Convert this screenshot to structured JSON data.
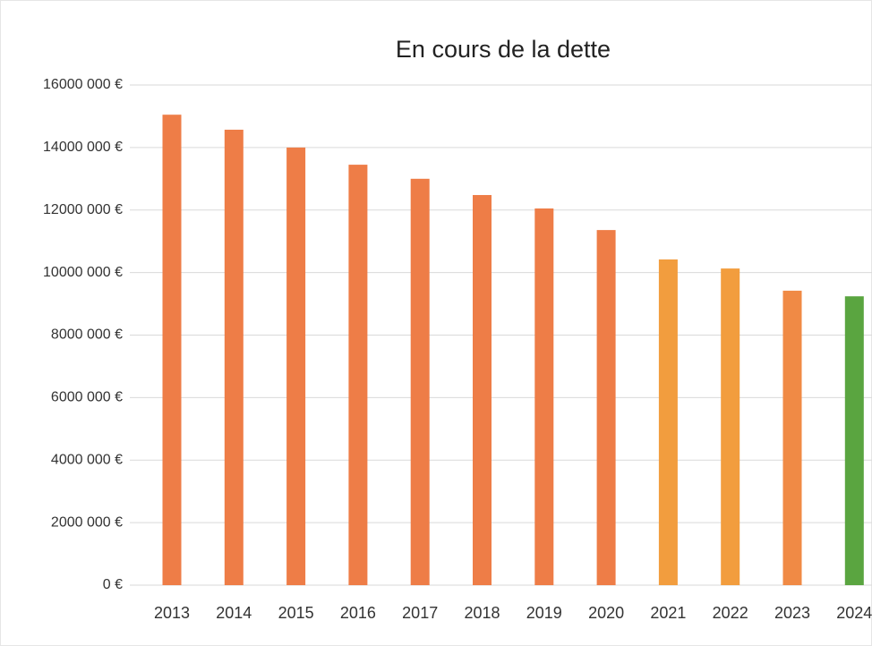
{
  "chart_data": {
    "type": "bar",
    "title": "En cours de la dette",
    "categories": [
      "2013",
      "2014",
      "2015",
      "2016",
      "2017",
      "2018",
      "2019",
      "2020",
      "2021",
      "2022",
      "2023",
      "2024"
    ],
    "values": [
      15050000,
      14570000,
      14000000,
      13450000,
      13000000,
      12480000,
      12050000,
      11360000,
      10420000,
      10130000,
      9420000,
      9240000
    ],
    "colors": [
      "#ee7d47",
      "#ee7d47",
      "#ee7d47",
      "#ee7d47",
      "#ee7d47",
      "#ee7d47",
      "#ee7d47",
      "#ee7d47",
      "#f29d3e",
      "#f29d3e",
      "#f08a45",
      "#5aa540"
    ],
    "ylim": [
      0,
      16000000
    ],
    "yticks": [
      {
        "value": 0,
        "label": "0 €"
      },
      {
        "value": 2000000,
        "label": "2000 000 €"
      },
      {
        "value": 4000000,
        "label": "4000 000 €"
      },
      {
        "value": 6000000,
        "label": "6000 000 €"
      },
      {
        "value": 8000000,
        "label": "8000 000 €"
      },
      {
        "value": 10000000,
        "label": "10000 000 €"
      },
      {
        "value": 12000000,
        "label": "12000 000 €"
      },
      {
        "value": 14000000,
        "label": "14000 000 €"
      },
      {
        "value": 16000000,
        "label": "16000 000 €"
      }
    ],
    "grid": true
  }
}
